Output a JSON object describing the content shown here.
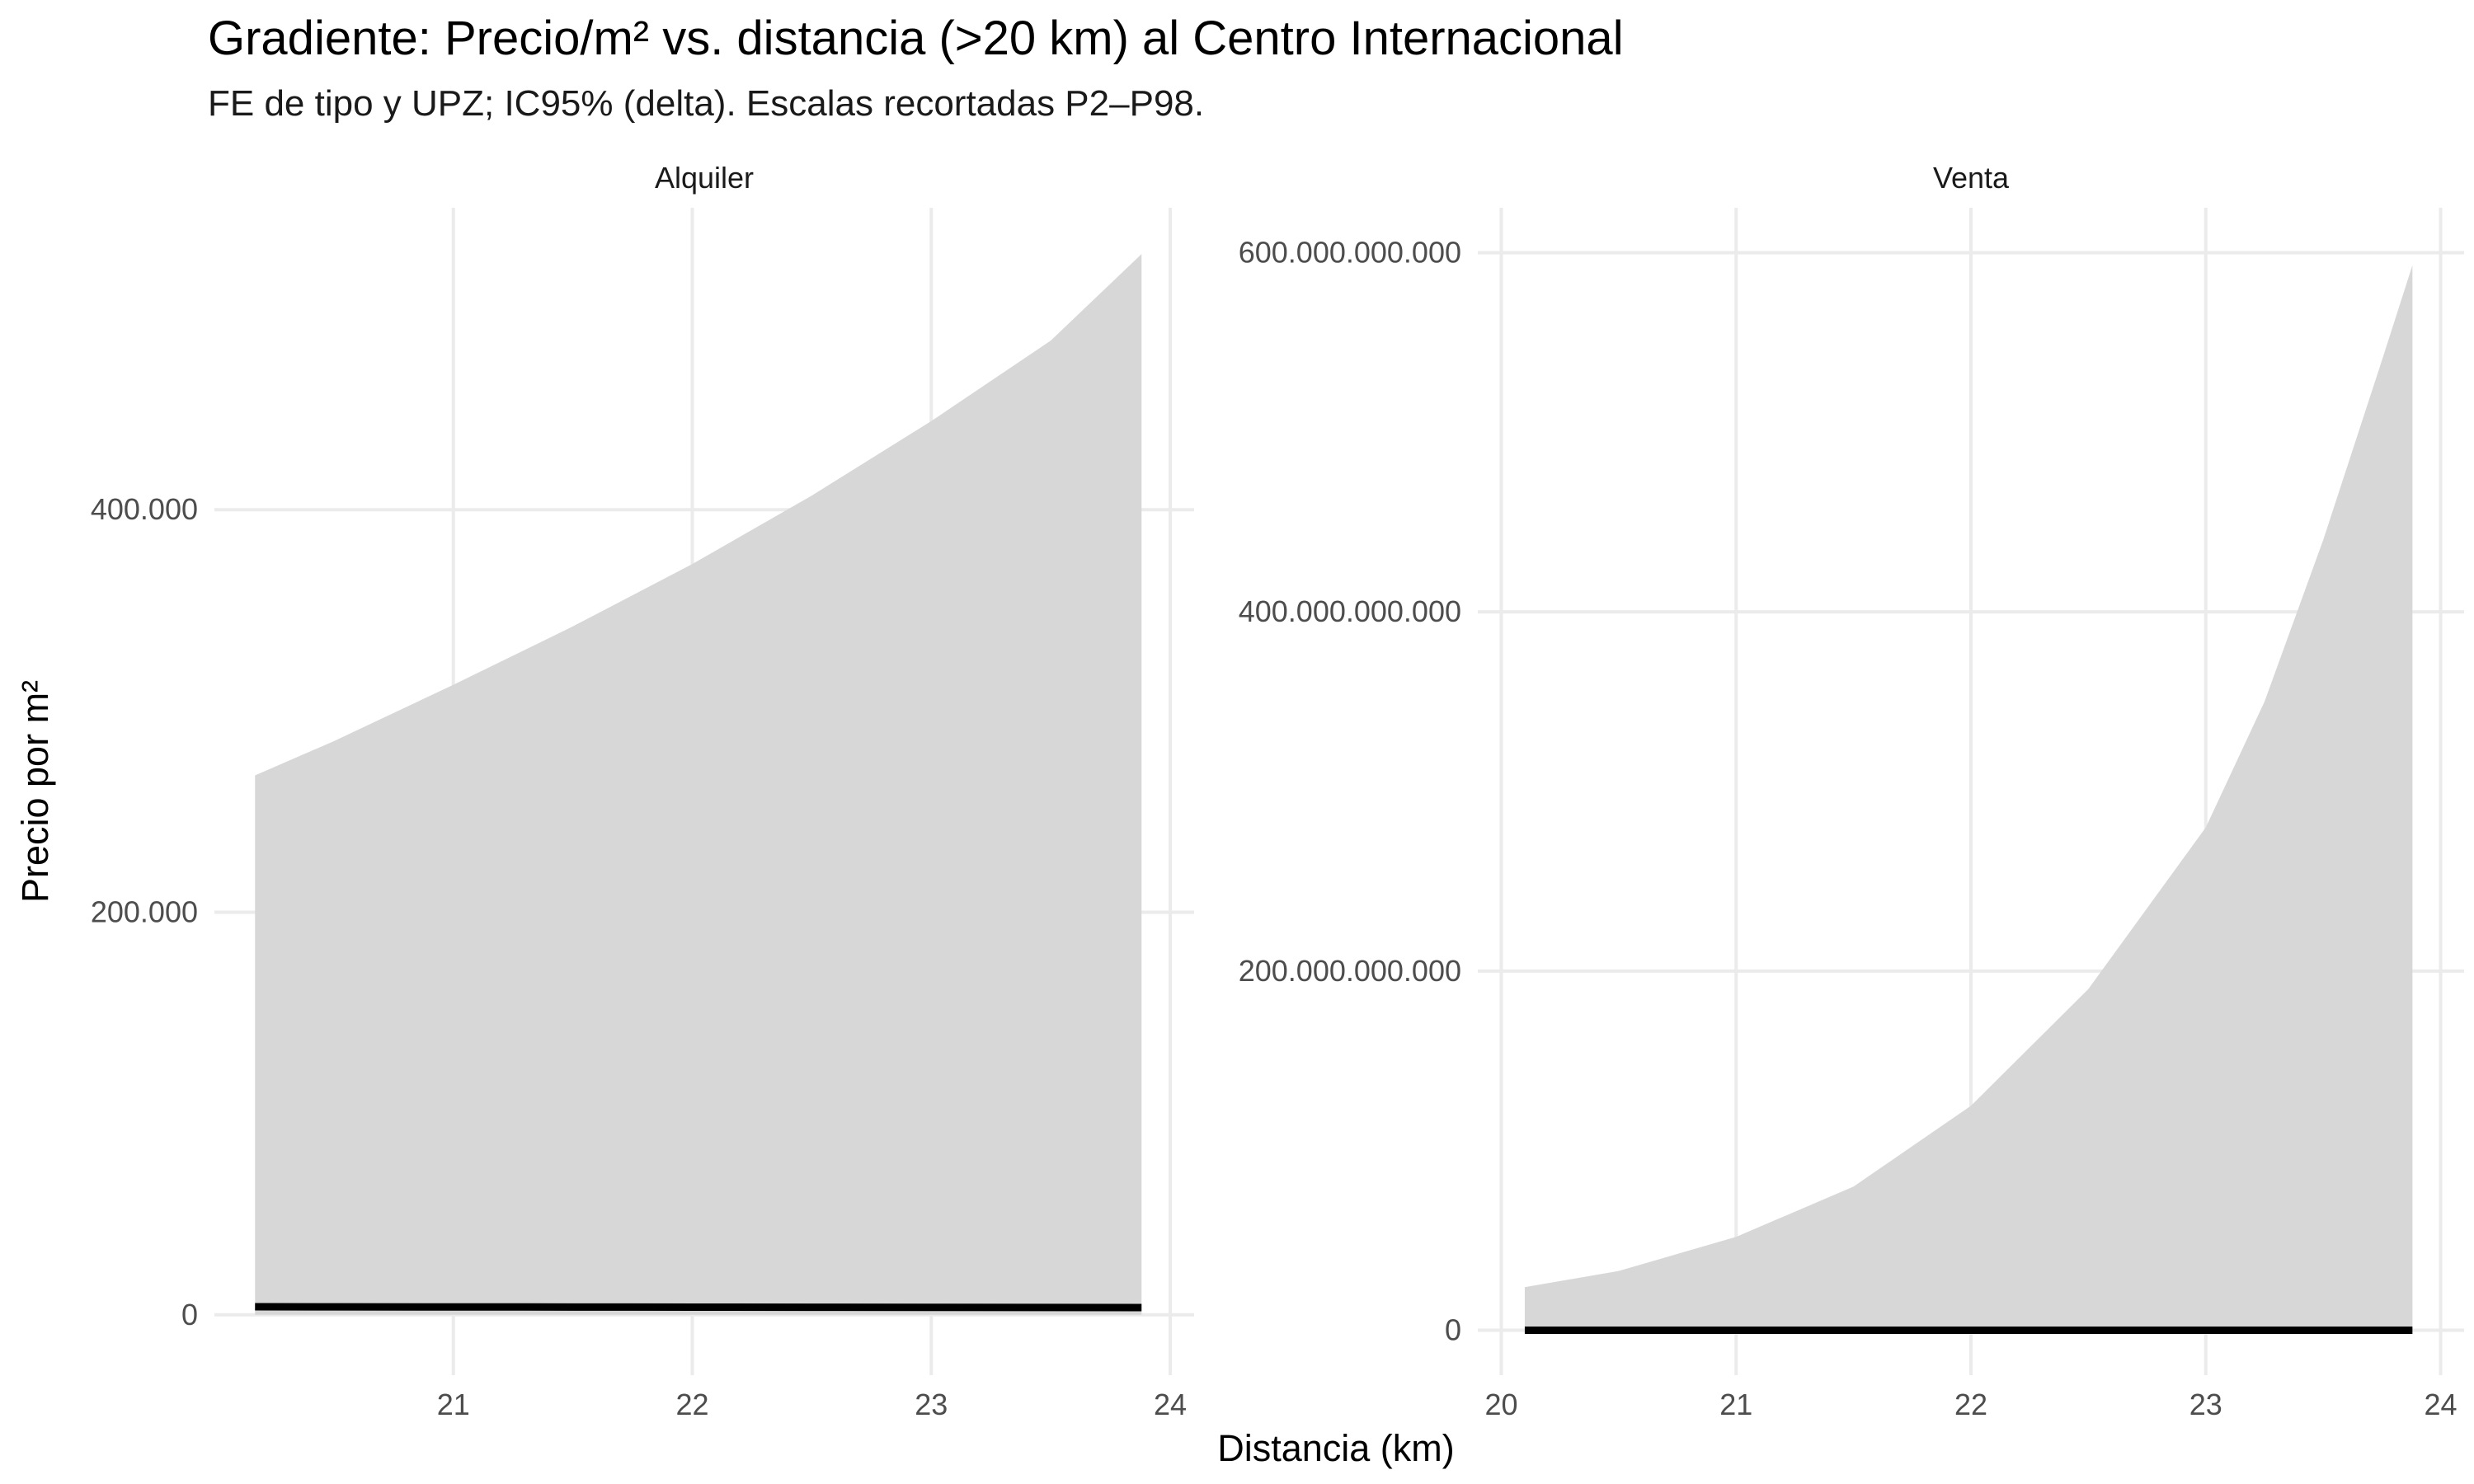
{
  "chart_data": {
    "type": "area",
    "title": "Gradiente: Precio/m² vs. distancia (>20 km) al Centro Internacional",
    "subtitle": "FE de tipo y UPZ; IC95% (delta). Escalas recortadas P2–P98.",
    "xlabel": "Distancia (km)",
    "ylabel": "Precio por m²",
    "grid": true,
    "legend": "none",
    "colors": {
      "band": "#d6d6d6",
      "line": "#000000",
      "grid": "#ebebeb",
      "text": "#4d4d4d"
    },
    "panels": [
      {
        "name": "Alquiler",
        "xlim": [
          20.0,
          24.1
        ],
        "ylim": [
          -30000,
          550000
        ],
        "x_ticks": [
          21,
          22,
          23,
          24
        ],
        "x_tick_labels": [
          "21",
          "22",
          "23",
          "24"
        ],
        "y_ticks": [
          0,
          200000,
          400000
        ],
        "y_tick_labels": [
          "0",
          "200.000",
          "400.000"
        ],
        "x": [
          20.17,
          20.5,
          21.0,
          21.5,
          22.0,
          22.5,
          23.0,
          23.5,
          23.88
        ],
        "estimate": [
          4000,
          3950,
          3900,
          3850,
          3800,
          3750,
          3700,
          3650,
          3600
        ],
        "lower": [
          0,
          0,
          0,
          0,
          0,
          0,
          0,
          0,
          0
        ],
        "upper": [
          268000,
          285000,
          313000,
          342000,
          373000,
          407000,
          444000,
          484000,
          527000
        ]
      },
      {
        "name": "Venta",
        "xlim": [
          19.9,
          24.1
        ],
        "ylim": [
          -25000000000,
          625000000000
        ],
        "x_ticks": [
          20,
          21,
          22,
          23,
          24
        ],
        "x_tick_labels": [
          "20",
          "21",
          "22",
          "23",
          "24"
        ],
        "y_ticks": [
          0,
          200000000000,
          400000000000,
          600000000000
        ],
        "y_tick_labels": [
          "0",
          "200.000.000.000",
          "400.000.000.000",
          "600.000.000.000"
        ],
        "x": [
          20.1,
          20.5,
          21.0,
          21.5,
          22.0,
          22.5,
          23.0,
          23.25,
          23.5,
          23.75,
          23.88
        ],
        "estimate": [
          0,
          0,
          0,
          0,
          0,
          0,
          0,
          0,
          0,
          0,
          0
        ],
        "lower": [
          0,
          0,
          0,
          0,
          0,
          0,
          0,
          0,
          0,
          0,
          0
        ],
        "upper": [
          24000000000,
          33000000000,
          52000000000,
          80000000000,
          125000000000,
          190000000000,
          280000000000,
          350000000000,
          440000000000,
          540000000000,
          593000000000
        ]
      }
    ]
  }
}
